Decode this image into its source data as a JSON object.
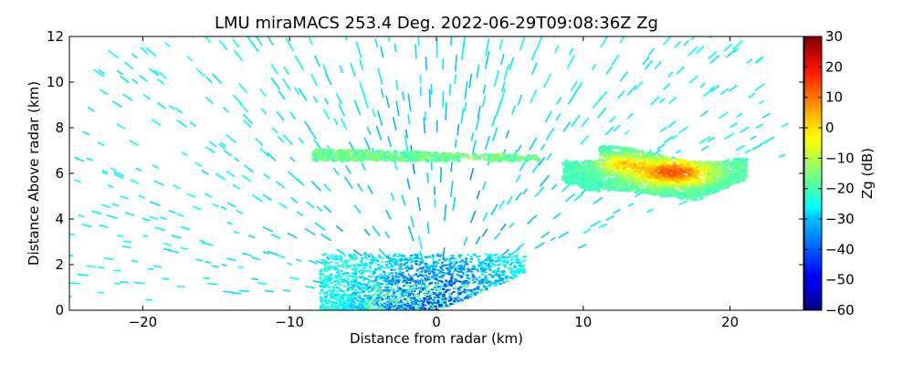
{
  "chart_data": {
    "type": "heatmap",
    "title": "LMU miraMACS 253.4 Deg. 2022-06-29T09:08:36Z  Zg",
    "xlabel": "Distance from radar (km)",
    "ylabel": "Distance Above radar  (km)",
    "xlim": [
      -25,
      25
    ],
    "ylim": [
      0,
      12
    ],
    "x_ticks": [
      -20,
      -10,
      0,
      10,
      20
    ],
    "y_ticks": [
      0,
      2,
      4,
      6,
      8,
      10,
      12
    ],
    "colorbar": {
      "label": "Zg (dB)",
      "range": [
        -60,
        30
      ],
      "ticks": [
        30,
        20,
        10,
        0,
        -10,
        -20,
        -30,
        -40,
        -50,
        -60
      ],
      "colormap": "jet"
    },
    "sector": {
      "left_edge_angle_deg_from_horizontal": 90,
      "scan_edge": {
        "x_near": 0,
        "y_near": 0,
        "x_far": 23.5,
        "y_far": 6.5
      },
      "max_range_km": 25
    },
    "features": [
      {
        "name": "noise background",
        "value_db": -27
      },
      {
        "name": "near-surface clutter",
        "x_range": [
          -8,
          6
        ],
        "y_range": [
          0,
          2.5
        ],
        "value_db_range": [
          -45,
          -25
        ]
      },
      {
        "name": "cloud layer left",
        "x_range": [
          -8.5,
          7
        ],
        "y_range": [
          6.6,
          7.1
        ],
        "value_db_range": [
          -22,
          -12
        ]
      },
      {
        "name": "cloud layer right",
        "x_range": [
          8.5,
          23.5
        ],
        "y_range": [
          4.8,
          7.5
        ],
        "value_db_range": [
          -20,
          12
        ]
      }
    ]
  }
}
